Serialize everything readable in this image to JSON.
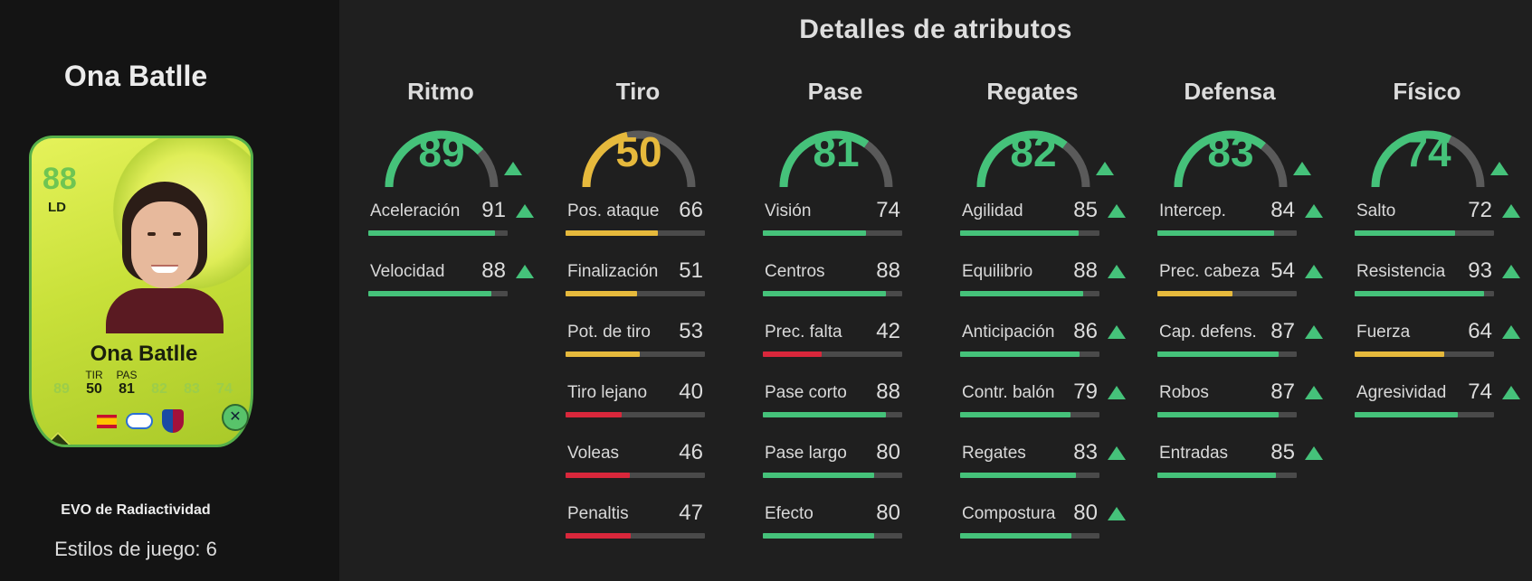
{
  "player": {
    "name": "Ona Batlle",
    "evo_name": "EVO de Radiactividad",
    "playstyles": "Estilos de juego: 6"
  },
  "card": {
    "rating": "88",
    "position": "LD",
    "name": "Ona Batlle",
    "stats": [
      {
        "label": "",
        "value": "89",
        "faded": true
      },
      {
        "label": "TIR",
        "value": "50",
        "faded": false
      },
      {
        "label": "PAS",
        "value": "81",
        "faded": false
      },
      {
        "label": "",
        "value": "82",
        "faded": true
      },
      {
        "label": "",
        "value": "83",
        "faded": true
      },
      {
        "label": "",
        "value": "74",
        "faded": true
      }
    ]
  },
  "page_title": "Detalles de atributos",
  "colors": {
    "high": "#45c27a",
    "mid": "#e6b93c",
    "low": "#d9273b",
    "track": "#4a4a4a"
  },
  "categories": [
    {
      "title": "Ritmo",
      "value": 89,
      "arrow": true,
      "stats": [
        {
          "name": "Aceleración",
          "value": 91,
          "arrow": true
        },
        {
          "name": "Velocidad",
          "value": 88,
          "arrow": true
        }
      ]
    },
    {
      "title": "Tiro",
      "value": 50,
      "arrow": false,
      "stats": [
        {
          "name": "Pos. ataque",
          "value": 66,
          "arrow": false
        },
        {
          "name": "Finalización",
          "value": 51,
          "arrow": false
        },
        {
          "name": "Pot. de tiro",
          "value": 53,
          "arrow": false
        },
        {
          "name": "Tiro lejano",
          "value": 40,
          "arrow": false
        },
        {
          "name": "Voleas",
          "value": 46,
          "arrow": false
        },
        {
          "name": "Penaltis",
          "value": 47,
          "arrow": false
        }
      ]
    },
    {
      "title": "Pase",
      "value": 81,
      "arrow": false,
      "stats": [
        {
          "name": "Visión",
          "value": 74,
          "arrow": false
        },
        {
          "name": "Centros",
          "value": 88,
          "arrow": false
        },
        {
          "name": "Prec. falta",
          "value": 42,
          "arrow": false
        },
        {
          "name": "Pase corto",
          "value": 88,
          "arrow": false
        },
        {
          "name": "Pase largo",
          "value": 80,
          "arrow": false
        },
        {
          "name": "Efecto",
          "value": 80,
          "arrow": false
        }
      ]
    },
    {
      "title": "Regates",
      "value": 82,
      "arrow": true,
      "stats": [
        {
          "name": "Agilidad",
          "value": 85,
          "arrow": true
        },
        {
          "name": "Equilibrio",
          "value": 88,
          "arrow": true
        },
        {
          "name": "Anticipación",
          "value": 86,
          "arrow": true
        },
        {
          "name": "Contr. balón",
          "value": 79,
          "arrow": true
        },
        {
          "name": "Regates",
          "value": 83,
          "arrow": true
        },
        {
          "name": "Compostura",
          "value": 80,
          "arrow": true
        }
      ]
    },
    {
      "title": "Defensa",
      "value": 83,
      "arrow": true,
      "stats": [
        {
          "name": "Intercep.",
          "value": 84,
          "arrow": true
        },
        {
          "name": "Prec. cabeza",
          "value": 54,
          "arrow": true
        },
        {
          "name": "Cap. defens.",
          "value": 87,
          "arrow": true
        },
        {
          "name": "Robos",
          "value": 87,
          "arrow": true
        },
        {
          "name": "Entradas",
          "value": 85,
          "arrow": true
        }
      ]
    },
    {
      "title": "Físico",
      "value": 74,
      "arrow": true,
      "stats": [
        {
          "name": "Salto",
          "value": 72,
          "arrow": true
        },
        {
          "name": "Resistencia",
          "value": 93,
          "arrow": true
        },
        {
          "name": "Fuerza",
          "value": 64,
          "arrow": true
        },
        {
          "name": "Agresividad",
          "value": 74,
          "arrow": true
        }
      ]
    }
  ]
}
